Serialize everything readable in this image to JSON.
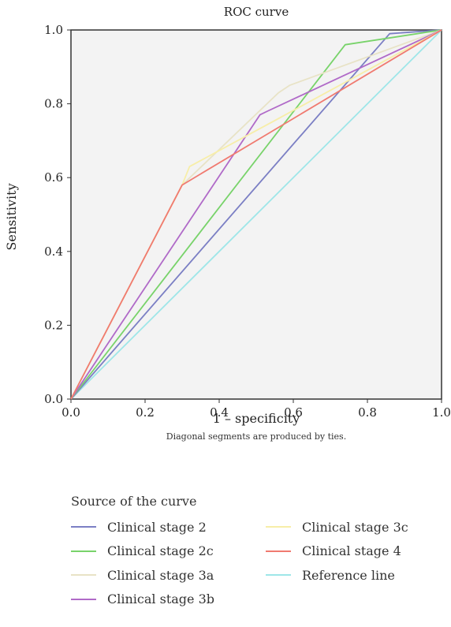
{
  "chart_data": {
    "type": "line",
    "title": "ROC curve",
    "xlabel": "1 – specificity",
    "ylabel": "Sensitivity",
    "xlim": [
      0,
      1
    ],
    "ylim": [
      0,
      1
    ],
    "xticks": [
      "0.0",
      "0.2",
      "0.4",
      "0.6",
      "0.8",
      "1.0"
    ],
    "yticks": [
      "0.0",
      "0.2",
      "0.4",
      "0.6",
      "0.8",
      "1.0"
    ],
    "grid": false,
    "legend_placement": "bottom",
    "series": [
      {
        "name": "Clinical stage 2",
        "color": "#7b7fc4",
        "x": [
          0,
          0.86,
          1.0
        ],
        "y": [
          0,
          0.99,
          1.0
        ]
      },
      {
        "name": "Clinical stage 2c",
        "color": "#78d36a",
        "x": [
          0,
          0.74,
          1.0
        ],
        "y": [
          0,
          0.96,
          1.0
        ]
      },
      {
        "name": "Clinical stage 3a",
        "color": "#e8e3c6",
        "x": [
          0,
          0.3,
          0.56,
          0.59,
          1.0
        ],
        "y": [
          0,
          0.58,
          0.83,
          0.85,
          1.0
        ]
      },
      {
        "name": "Clinical stage 3b",
        "color": "#b06ac8",
        "x": [
          0,
          0.51,
          0.53,
          1.0
        ],
        "y": [
          0,
          0.77,
          0.78,
          1.0
        ]
      },
      {
        "name": "Clinical stage 3c",
        "color": "#f7eea8",
        "x": [
          0,
          0.3,
          0.32,
          0.56,
          1.0
        ],
        "y": [
          0,
          0.58,
          0.63,
          0.76,
          1.0
        ]
      },
      {
        "name": "Clinical stage 4",
        "color": "#f07a70",
        "x": [
          0,
          0.3,
          1.0
        ],
        "y": [
          0,
          0.58,
          1.0
        ]
      },
      {
        "name": "Reference line",
        "color": "#9ee6e8",
        "x": [
          0,
          1
        ],
        "y": [
          0,
          1
        ]
      }
    ]
  },
  "note": "Diagonal segments are produced by ties.",
  "legend_title": "Source of the curve",
  "colors": {
    "plot_background": "#f3f3f3",
    "axis": "#333333"
  }
}
